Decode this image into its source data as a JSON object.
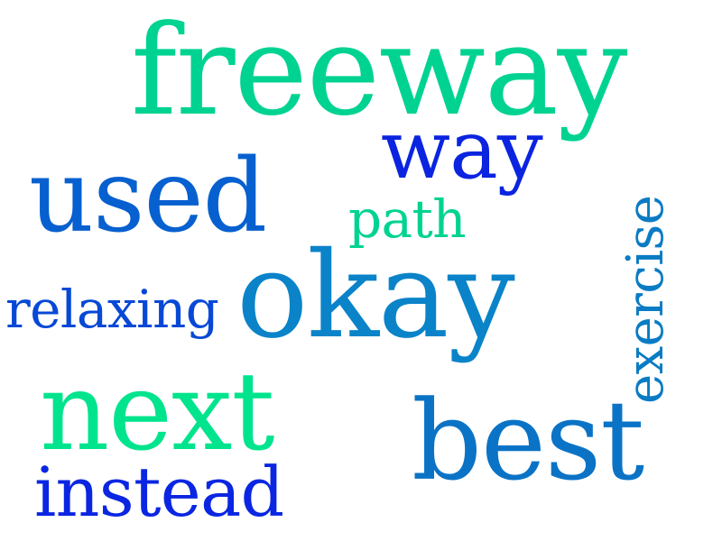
{
  "words": {
    "freeway": {
      "text": "freeway",
      "color": "#00d391"
    },
    "way": {
      "text": "way",
      "color": "#0a24e0"
    },
    "used": {
      "text": "used",
      "color": "#0760cf"
    },
    "path": {
      "text": "path",
      "color": "#00d391"
    },
    "okay": {
      "text": "okay",
      "color": "#0a83c9"
    },
    "relaxing": {
      "text": "relaxing",
      "color": "#0748d6"
    },
    "next": {
      "text": "next",
      "color": "#00e48d"
    },
    "best": {
      "text": "best",
      "color": "#0a73c6"
    },
    "instead": {
      "text": "instead",
      "color": "#0a26e2"
    },
    "exercise": {
      "text": "exercise",
      "color": "#0a7bc4"
    }
  }
}
